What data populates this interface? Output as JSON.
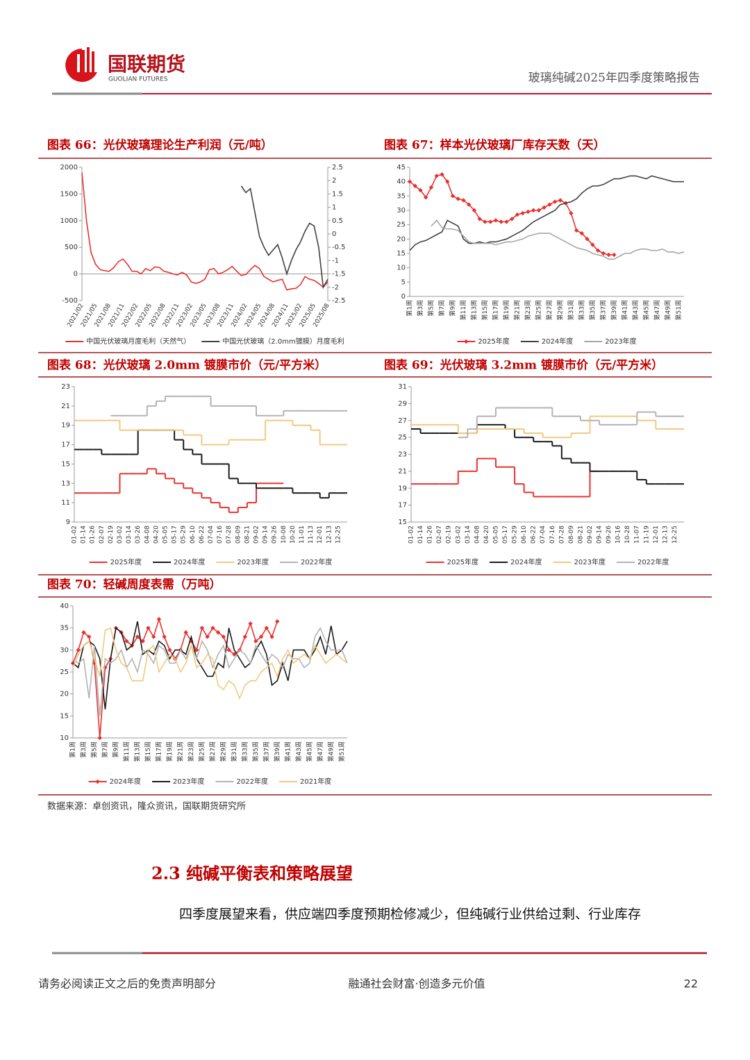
{
  "header": {
    "logo_name": "国联期货",
    "logo_en": "GUOLIAN FUTURES",
    "report_title": "玻璃纯碱2025年四季度策略报告"
  },
  "chart_data": [
    {
      "type": "line",
      "title": "图表 66：光伏玻璃理论生产利润（元/吨）",
      "categories": [
        "2021/02",
        null,
        null,
        "2021/05",
        null,
        null,
        "2021/08",
        null,
        null,
        "2021/11",
        null,
        null,
        "2022/02",
        null,
        null,
        "2022/05",
        null,
        null,
        "2022/08",
        null,
        null,
        "2022/11",
        null,
        null,
        "2023/02",
        null,
        null,
        "2023/05",
        null,
        null,
        "2023/08",
        null,
        null,
        "2023/11",
        null,
        null,
        "2024/02",
        null,
        null,
        "2024/05",
        null,
        null,
        "2024/08",
        null,
        null,
        "2024/11",
        null,
        null,
        "2025/02",
        null,
        null,
        "2025/05",
        null,
        null,
        "2025/08"
      ],
      "series": [
        {
          "name": "中国光伏玻璃月度毛利（天然气）",
          "color": "#e8312f",
          "values": [
            1900,
            1000,
            400,
            180,
            80,
            60,
            50,
            120,
            230,
            280,
            180,
            50,
            50,
            0,
            100,
            60,
            130,
            120,
            50,
            30,
            0,
            -20,
            30,
            -20,
            -150,
            -180,
            -150,
            -100,
            80,
            100,
            0,
            30,
            80,
            140,
            50,
            -30,
            -10,
            80,
            160,
            100,
            -50,
            -100,
            -150,
            -120,
            -100,
            -300,
            -280,
            -270,
            -200,
            -50,
            -100,
            -120,
            -180,
            -250,
            -150
          ]
        },
        {
          "name": "中国光伏玻璃（2.0mm镀膜）月度毛利",
          "color": "#404040",
          "axis": "y2",
          "values": [
            null,
            null,
            null,
            null,
            null,
            null,
            null,
            null,
            null,
            null,
            null,
            null,
            null,
            null,
            null,
            null,
            null,
            null,
            null,
            null,
            null,
            null,
            null,
            null,
            null,
            null,
            null,
            null,
            null,
            null,
            null,
            null,
            null,
            null,
            null,
            1.8,
            1.55,
            1.7,
            0.8,
            -0.1,
            -0.5,
            -0.8,
            -0.6,
            -0.4,
            -0.9,
            -1.5,
            -1.0,
            -0.6,
            -0.3,
            0.1,
            0.4,
            0.3,
            -0.5,
            -2.0,
            -1.7
          ]
        }
      ],
      "ylim": [
        -500,
        2000
      ],
      "yticks": [
        -500,
        0,
        500,
        1000,
        1500,
        2000
      ],
      "y2lim": [
        -2.5,
        2.5
      ],
      "y2ticks": [
        -2.5,
        -2,
        -1.5,
        -1,
        -0.5,
        0,
        0.5,
        1,
        1.5,
        2,
        2.5
      ],
      "legend": "bottom"
    },
    {
      "type": "line",
      "title": "图表 67：样本光伏玻璃厂库存天数（天）",
      "categories": [
        "第1周",
        null,
        "第3周",
        null,
        "第5周",
        null,
        "第7周",
        null,
        "第9周",
        null,
        "第11周",
        null,
        "第13周",
        null,
        "第15周",
        null,
        "第17周",
        null,
        "第19周",
        null,
        "第21周",
        null,
        "第23周",
        null,
        "第25周",
        null,
        "第27周",
        null,
        "第29周",
        null,
        "第31周",
        null,
        "第33周",
        null,
        "第35周",
        null,
        "第37周",
        null,
        "第39周",
        null,
        "第41周",
        null,
        "第43周",
        null,
        "第45周",
        null,
        "第47周",
        null,
        "第49周",
        null,
        "第51周",
        null
      ],
      "series": [
        {
          "name": "2025年度",
          "color": "#e8312f",
          "marker": "diamond",
          "values": [
            40,
            38.5,
            37,
            34.5,
            38,
            42,
            42.5,
            40,
            35,
            34,
            33.5,
            32,
            30,
            27,
            26,
            26,
            26.5,
            26,
            26,
            27,
            28.5,
            29,
            29.5,
            30,
            30,
            31,
            32,
            33,
            33.5,
            32.5,
            29,
            23,
            22,
            20,
            18,
            16,
            15,
            14.5,
            14.5,
            null,
            null,
            null,
            null,
            null,
            null,
            null,
            null,
            null,
            null,
            null,
            null,
            null
          ]
        },
        {
          "name": "2024年度",
          "color": "#404040",
          "values": [
            16,
            18,
            19,
            19.5,
            20.5,
            21.5,
            22.5,
            26.5,
            25.5,
            24.5,
            20,
            18.5,
            18.5,
            19,
            18.5,
            19,
            19,
            19.5,
            20,
            21,
            22,
            23,
            24.5,
            26,
            27,
            28,
            29,
            30,
            32,
            32.5,
            33,
            34,
            36,
            37.5,
            38.5,
            38.5,
            39,
            40,
            41,
            41,
            41.5,
            42,
            42,
            41.5,
            41,
            42,
            41.5,
            41,
            40.5,
            40,
            40,
            40
          ]
        },
        {
          "name": "2023年度",
          "color": "#a6a6a6",
          "values": [
            null,
            null,
            null,
            null,
            24.5,
            26.5,
            24,
            23.5,
            23.5,
            23,
            21,
            19,
            18.5,
            18.5,
            18.5,
            18.5,
            18,
            18.5,
            19,
            19,
            19.5,
            20,
            21,
            21.5,
            22,
            22,
            22,
            21,
            20,
            19,
            18,
            17,
            16.5,
            16,
            15,
            14.5,
            14,
            13,
            13,
            14,
            15,
            15,
            16,
            16.5,
            16.5,
            16,
            16,
            16.5,
            15.5,
            15.5,
            15,
            15.5
          ]
        }
      ],
      "ylim": [
        0,
        45
      ],
      "yticks": [
        0,
        5,
        10,
        15,
        20,
        25,
        30,
        35,
        40,
        45
      ],
      "legend": "bottom"
    },
    {
      "type": "line",
      "step": true,
      "title": "图表 68：光伏玻璃 2.0mm 镀膜市价（元/平方米）",
      "categories": [
        "01-02",
        "01-14",
        "01-26",
        "02-07",
        "02-19",
        "03-02",
        "03-14",
        "03-26",
        "04-08",
        "04-20",
        "05-05",
        "05-17",
        "05-29",
        "06-10",
        "06-22",
        "07-04",
        "07-16",
        "07-28",
        "08-09",
        "08-21",
        "09-02",
        "09-14",
        "09-26",
        "10-08",
        "10-20",
        "11-01",
        "11-13",
        "12-01",
        "12-13",
        "12-25"
      ],
      "series": [
        {
          "name": "2025年度",
          "color": "#e8312f",
          "values": [
            12,
            12,
            12,
            12,
            12,
            14,
            14,
            14,
            14.5,
            14,
            13.5,
            13,
            12.5,
            12,
            11.5,
            11,
            10.5,
            10,
            10.5,
            11,
            13,
            13,
            13,
            null,
            null,
            null,
            null,
            null,
            null,
            null
          ]
        },
        {
          "name": "2024年度",
          "color": "#1a1a1a",
          "values": [
            16.5,
            16.5,
            16.5,
            16,
            16,
            16,
            16,
            18.5,
            18.5,
            18.5,
            18.5,
            17.5,
            16.5,
            16,
            15,
            15,
            15,
            13.5,
            13,
            13,
            12.5,
            12.5,
            12.5,
            12.5,
            12,
            12,
            12,
            11.5,
            12,
            12
          ]
        },
        {
          "name": "2023年度",
          "color": "#f2c97d",
          "values": [
            19.5,
            19.5,
            19.5,
            19.5,
            19.5,
            18.5,
            18.5,
            18.5,
            18.5,
            18.5,
            18.5,
            18.5,
            18,
            18,
            17,
            17,
            17,
            17.5,
            17.5,
            17.5,
            17.5,
            19.5,
            19.5,
            19.5,
            19,
            19,
            18.5,
            17,
            17,
            17
          ]
        },
        {
          "name": "2022年度",
          "color": "#b3b3b3",
          "values": [
            null,
            null,
            null,
            null,
            20,
            20,
            20,
            20,
            21,
            21.5,
            22,
            22,
            22,
            22,
            22,
            21,
            21,
            21,
            21,
            21,
            20,
            20,
            20,
            20.5,
            20.5,
            20.5,
            20.5,
            20.5,
            20.5,
            20.5
          ]
        }
      ],
      "ylim": [
        9,
        23
      ],
      "yticks": [
        9,
        11,
        13,
        15,
        17,
        19,
        21,
        23
      ],
      "legend": "bottom"
    },
    {
      "type": "line",
      "step": true,
      "title": "图表 69：光伏玻璃 3.2mm 镀膜市价（元/平方米）",
      "categories": [
        "01-02",
        "01-14",
        "01-26",
        "02-07",
        "02-19",
        "03-02",
        "03-14",
        "04-08",
        "04-20",
        "05-05",
        "05-17",
        "05-29",
        "06-10",
        "06-22",
        "07-04",
        "07-16",
        "07-28",
        "08-09",
        "08-21",
        "09-02",
        "09-14",
        "09-26",
        "10-16",
        "10-28",
        "11-07",
        "11-19",
        "12-01",
        "12-13",
        "12-25"
      ],
      "series": [
        {
          "name": "2025年度",
          "color": "#e8312f",
          "values": [
            19.5,
            19.5,
            19.5,
            19.5,
            19.5,
            21,
            21,
            22.5,
            22.5,
            21.5,
            21.5,
            19.5,
            18.5,
            18,
            18,
            18,
            18,
            18,
            18,
            21,
            null,
            null,
            null,
            null,
            null,
            null,
            null,
            null,
            null
          ]
        },
        {
          "name": "2024年度",
          "color": "#1a1a1a",
          "values": [
            26,
            25.5,
            25.5,
            25.5,
            25.5,
            25.5,
            25.5,
            26.5,
            26.5,
            26.5,
            26,
            25,
            25,
            24.5,
            24.5,
            24,
            22.5,
            22,
            22,
            21,
            21,
            21,
            21,
            21,
            20,
            19.5,
            19.5,
            19.5,
            19.5
          ]
        },
        {
          "name": "2023年度",
          "color": "#f2c97d",
          "values": [
            26.5,
            26.5,
            26.5,
            26.5,
            26.5,
            25.5,
            25.5,
            26,
            26,
            26,
            26,
            26,
            25.5,
            25.5,
            25,
            25,
            25,
            25.5,
            25.5,
            27.5,
            27.5,
            27.5,
            27.5,
            27.5,
            27,
            27,
            26,
            26,
            26
          ]
        },
        {
          "name": "2022年度",
          "color": "#b3b3b3",
          "values": [
            null,
            null,
            null,
            null,
            null,
            25,
            26,
            27.5,
            27.5,
            28.5,
            28.5,
            28.5,
            28.5,
            28.5,
            28.5,
            27.5,
            27.5,
            27.5,
            27,
            27,
            26.5,
            26.5,
            26.5,
            26.5,
            28,
            28,
            27.5,
            27.5,
            27.5
          ]
        }
      ],
      "ylim": [
        15,
        31
      ],
      "yticks": [
        15,
        17,
        19,
        21,
        23,
        25,
        27,
        29,
        31
      ],
      "legend": "bottom"
    },
    {
      "type": "line",
      "title": "图表 70：轻碱周度表需（万吨）",
      "categories": [
        "第1周",
        null,
        "第3周",
        null,
        "第5周",
        null,
        "第7周",
        null,
        "第9周",
        null,
        "第11周",
        null,
        "第13周",
        null,
        "第15周",
        null,
        "第17周",
        null,
        "第19周",
        null,
        "第21周",
        null,
        "第23周",
        null,
        "第25周",
        null,
        "第27周",
        null,
        "第29周",
        null,
        "第31周",
        null,
        "第33周",
        null,
        "第35周",
        null,
        "第37周",
        null,
        "第39周",
        null,
        "第41周",
        null,
        "第43周",
        null,
        "第45周",
        null,
        "第47周",
        null,
        "第49周",
        null,
        "第51周",
        null
      ],
      "series": [
        {
          "name": "2024年度",
          "color": "#e8312f",
          "marker": "diamond",
          "values": [
            27,
            30,
            34,
            33,
            27,
            10,
            26,
            28,
            35,
            34,
            32,
            31,
            33,
            32,
            35,
            33,
            37,
            33,
            30,
            28,
            30,
            34,
            32,
            30,
            35,
            33,
            35,
            34,
            33,
            30,
            29,
            30,
            33,
            36,
            32,
            33,
            35,
            33,
            36.5,
            null,
            null,
            null,
            null,
            null,
            null,
            null,
            null,
            null,
            null,
            null,
            null,
            null
          ]
        },
        {
          "name": "2023年度",
          "color": "#1a1a1a",
          "values": [
            27,
            26,
            31,
            32,
            31,
            28,
            16.5,
            28,
            35,
            34,
            30,
            31,
            36.5,
            29,
            30,
            29,
            32,
            31,
            28,
            30,
            30,
            29,
            33,
            28,
            26,
            24,
            24,
            27,
            26,
            35,
            30,
            28,
            26,
            27,
            30,
            32,
            29,
            22,
            23,
            27,
            23,
            30,
            30,
            30,
            28,
            30,
            33,
            29,
            35.5,
            29,
            30,
            32
          ]
        },
        {
          "name": "2022年度",
          "color": "#b3b3b3",
          "values": [
            28,
            27,
            28,
            19,
            31,
            15,
            28,
            27,
            28,
            30,
            26,
            28,
            25,
            30,
            29,
            27,
            31,
            30,
            27,
            27,
            30,
            28,
            31,
            28,
            32,
            30,
            26,
            29,
            31,
            26,
            28,
            30,
            29,
            27,
            31,
            29,
            27,
            29,
            28,
            26,
            29,
            28,
            28,
            26,
            27,
            33,
            35,
            32,
            30,
            30,
            30,
            27
          ]
        },
        {
          "name": "2021年度",
          "color": "#f2c97d",
          "values": [
            26,
            29,
            31,
            32,
            28,
            24,
            34.5,
            35,
            30,
            27,
            26,
            23,
            23,
            23,
            30,
            31,
            25,
            27,
            29,
            28,
            25,
            27,
            31,
            26,
            27,
            29,
            28,
            22,
            21,
            23,
            22,
            19,
            22,
            23,
            23,
            25,
            26,
            27,
            24,
            28,
            30,
            27,
            28,
            29,
            28,
            31,
            29,
            27,
            28,
            29,
            28,
            27
          ]
        }
      ],
      "ylim": [
        10,
        40
      ],
      "yticks": [
        10,
        15,
        20,
        25,
        30,
        35,
        40
      ],
      "legend": "bottom"
    }
  ],
  "source": "数据来源：卓创资讯，隆众资讯，国联期货研究所",
  "section": {
    "number": "2.3",
    "title": "纯碱平衡表和策略展望"
  },
  "paragraph": "四季度展望来看，供应端四季度预期检修减少，但纯碱行业供给过剩、行业库存",
  "footer": {
    "disclaimer": "请务必阅读正文之后的免责声明部分",
    "slogan": "融通社会财富·创造多元价值",
    "page": "22"
  }
}
